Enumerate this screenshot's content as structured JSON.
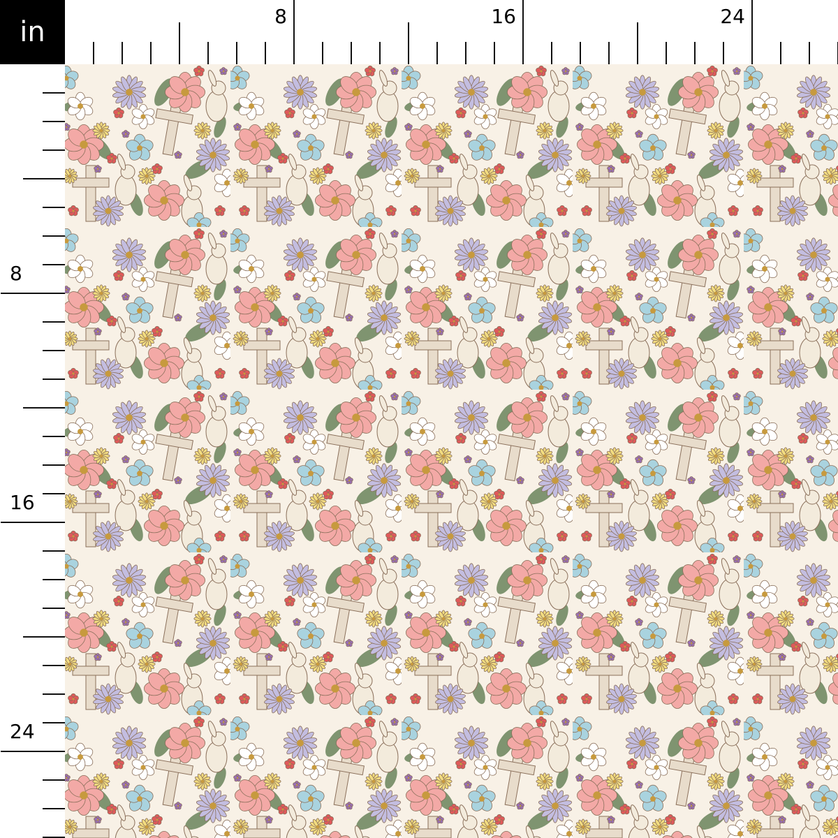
{
  "ruler": {
    "unit": "in",
    "top_labels": [
      "8",
      "16",
      "24"
    ],
    "left_labels": [
      "8",
      "16",
      "24"
    ],
    "label_step_inches": 8,
    "minor_tick_inches": 1
  },
  "fabric": {
    "motifs": [
      "pink-flower",
      "lavender-daisy",
      "blue-flower",
      "white-flower",
      "yellow-flower",
      "red-flower",
      "cross",
      "bunny",
      "leaf"
    ],
    "colors": {
      "background": "#f8f1e6",
      "pink": "#f3a9a6",
      "lavender": "#c3bde0",
      "blue": "#a9d3df",
      "white": "#ffffff",
      "yellow": "#f2dc80",
      "red": "#e0595a",
      "leaf": "#7f9470",
      "cross": "#e8dccb",
      "bunny": "#f3ebdc",
      "outline": "#8a6f5a",
      "center": "#c79a3e"
    }
  }
}
